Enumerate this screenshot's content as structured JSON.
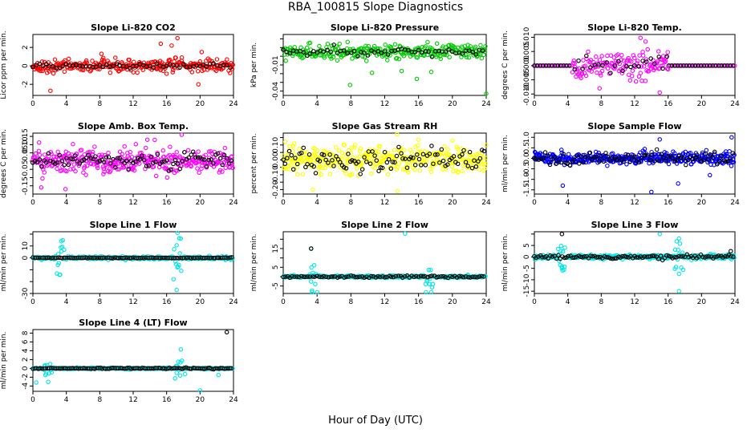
{
  "title": "RBA_100815  Slope Diagnostics",
  "xlabel": "Hour of Day (UTC)",
  "chart_data": [
    {
      "id": "co2",
      "type": "scatter",
      "title": "Slope Li-820 CO2",
      "ylabel": "Licor ppm per min.",
      "color": "#ff0000",
      "xlim": [
        0,
        24
      ],
      "ylim": [
        -3.2,
        3.4
      ],
      "yticks": [
        -2,
        0,
        2
      ],
      "yticklabels": [
        "-2",
        "0",
        "2"
      ],
      "xticks": [
        0,
        4,
        8,
        12,
        16,
        20,
        24
      ],
      "series": [
        {
          "color": "#ff0000",
          "spread": 0.6,
          "density": 300
        },
        {
          "color": "#000000",
          "spread": 0.25,
          "density": 60
        }
      ],
      "outliers": [
        [
          2.1,
          -2.7
        ],
        [
          15.3,
          2.4
        ],
        [
          16.6,
          2.2
        ],
        [
          17.3,
          3.0
        ],
        [
          19.8,
          -2.0
        ],
        [
          20.2,
          1.5
        ],
        [
          8.2,
          1.3
        ]
      ]
    },
    {
      "id": "pressure",
      "type": "scatter",
      "title": "Slope Li-820 Pressure",
      "ylabel": "kPa per min.",
      "color": "#00cc00",
      "xlim": [
        0,
        24
      ],
      "ylim": [
        -0.045,
        0.025
      ],
      "yticks": [
        -0.04,
        -0.03,
        -0.02,
        -0.01,
        0.0,
        0.01,
        0.02
      ],
      "yticklabels": [
        "-0.04",
        "",
        "",
        "-0.01",
        "",
        "",
        ""
      ],
      "xticks": [
        0,
        4,
        8,
        12,
        16,
        20,
        24
      ],
      "center": 0.005,
      "series": [
        {
          "color": "#00cc00",
          "spread": 0.007,
          "density": 300
        },
        {
          "color": "#000000",
          "spread": 0.004,
          "density": 60
        }
      ],
      "outliers": [
        [
          7.9,
          -0.033
        ],
        [
          15.8,
          -0.026
        ],
        [
          24.0,
          -0.043
        ],
        [
          10.5,
          -0.019
        ],
        [
          14.0,
          -0.017
        ],
        [
          17.5,
          -0.018
        ]
      ]
    },
    {
      "id": "temp",
      "type": "scatter",
      "title": "Slope Li-820 Temp.",
      "ylabel": "degrees C per min.",
      "color": "#ff00ff",
      "xlim": [
        0,
        24
      ],
      "ylim": [
        -0.0105,
        0.011
      ],
      "yticks": [
        -0.01,
        -0.005,
        0,
        0.005,
        0.01
      ],
      "yticklabels": [
        "-0.010",
        "-0.005",
        "0.000",
        "0.005",
        "0.010"
      ],
      "xticks": [
        0,
        4,
        8,
        12,
        16,
        20,
        24
      ],
      "center": 0,
      "series": [
        {
          "color": "#ff00ff",
          "spread": 0.004,
          "density": 280,
          "active": [
            4.5,
            16
          ]
        },
        {
          "color": "#000000",
          "spread": 0.003,
          "density": 50,
          "active": [
            4.5,
            16
          ]
        }
      ],
      "flat": {
        "color": "#ff00ff",
        "edge": "#000000"
      },
      "outliers": [
        [
          12.7,
          0.0098
        ],
        [
          13.3,
          0.0085
        ],
        [
          7.8,
          -0.008
        ],
        [
          15.0,
          -0.0095
        ]
      ]
    },
    {
      "id": "boxtemp",
      "type": "scatter",
      "title": "Slope Amb. Box Temp.",
      "ylabel": "degrees C per min.",
      "color": "#ff00ff",
      "xlim": [
        0,
        24
      ],
      "ylim": [
        -0.2,
        0.17
      ],
      "yticks": [
        -0.15,
        -0.1,
        -0.05,
        0,
        0.05,
        0.1,
        0.15
      ],
      "yticklabels": [
        "-0.15",
        "",
        "-0.05",
        "",
        "0.05",
        "0.10",
        "0.15"
      ],
      "xticks": [
        0,
        4,
        8,
        12,
        16,
        20,
        24
      ],
      "center": 0,
      "series": [
        {
          "color": "#ff00ff",
          "spread": 0.07,
          "density": 350
        },
        {
          "color": "#000000",
          "spread": 0.05,
          "density": 90
        }
      ],
      "outliers": [
        [
          3.9,
          -0.17
        ],
        [
          13.7,
          0.13
        ],
        [
          17.8,
          0.16
        ],
        [
          1.0,
          -0.16
        ]
      ]
    },
    {
      "id": "rh",
      "type": "scatter",
      "title": "Slope Gas Stream RH",
      "ylabel": "percent per min.",
      "color": "#ffff00",
      "xlim": [
        0,
        24
      ],
      "ylim": [
        -0.23,
        0.18
      ],
      "yticks": [
        -0.2,
        -0.15,
        -0.1,
        -0.05,
        0,
        0.05,
        0.1,
        0.15
      ],
      "yticklabels": [
        "-0.20",
        "",
        "-0.10",
        "",
        "0.00",
        "",
        "0.10",
        ""
      ],
      "xticks": [
        0,
        4,
        8,
        12,
        16,
        20,
        24
      ],
      "center": 0,
      "series": [
        {
          "color": "#ffff00",
          "spread": 0.08,
          "density": 380
        },
        {
          "color": "#000000",
          "spread": 0.07,
          "density": 100
        }
      ],
      "outliers": [
        [
          13.5,
          -0.21
        ],
        [
          3.5,
          -0.2
        ],
        [
          24.0,
          0.1
        ],
        [
          20.0,
          0.13
        ]
      ]
    },
    {
      "id": "sampleflow",
      "type": "scatter",
      "title": "Slope Sample Flow",
      "ylabel": "ml/min per min.",
      "color": "#0000ff",
      "xlim": [
        0,
        24
      ],
      "ylim": [
        -1.7,
        1.2
      ],
      "yticks": [
        -1.5,
        -1,
        -0.5,
        0,
        0.5,
        1
      ],
      "yticklabels": [
        "-1.5",
        "-1.0",
        "-0.5",
        "0.0",
        "0.5",
        "1.0"
      ],
      "xticks": [
        0,
        4,
        8,
        12,
        16,
        20,
        24
      ],
      "center": 0,
      "series": [
        {
          "color": "#0000ff",
          "spread": 0.25,
          "density": 380
        },
        {
          "color": "#000000",
          "spread": 0.3,
          "density": 90
        }
      ],
      "outliers": [
        [
          3.4,
          -1.3
        ],
        [
          14.0,
          -1.6
        ],
        [
          15.0,
          0.9
        ],
        [
          23.6,
          1.0
        ],
        [
          21.0,
          -0.8
        ],
        [
          17.2,
          -1.2
        ]
      ]
    },
    {
      "id": "line1",
      "type": "scatter",
      "title": "Slope Line 1 Flow",
      "ylabel": "ml/min per min.",
      "color": "#00e5e5",
      "xlim": [
        0,
        24
      ],
      "ylim": [
        -30,
        22
      ],
      "yticks": [
        -30,
        -20,
        -10,
        0,
        10,
        20
      ],
      "yticklabels": [
        "-30",
        "",
        "",
        "0",
        "10",
        ""
      ],
      "xticks": [
        0,
        4,
        8,
        12,
        16,
        20,
        24
      ],
      "center": 0,
      "series": [
        {
          "color": "#00e5e5",
          "spread": 1.2,
          "density": 300,
          "spikes": [
            3.3,
            17.3
          ],
          "spikeAmp": 9
        },
        {
          "color": "#000000",
          "spread": 0.3,
          "density": 110
        }
      ],
      "outliers": [
        [
          17.3,
          21
        ],
        [
          3.4,
          14
        ],
        [
          17.2,
          -27
        ],
        [
          17.3,
          -8
        ]
      ]
    },
    {
      "id": "line2",
      "type": "scatter",
      "title": "Slope Line 2 Flow",
      "ylabel": "ml/min per min.",
      "color": "#00e5e5",
      "xlim": [
        0,
        24
      ],
      "ylim": [
        -9,
        24
      ],
      "yticks": [
        -5,
        0,
        5,
        10,
        15,
        20
      ],
      "yticklabels": [
        "-5",
        "",
        "5",
        "",
        "15",
        ""
      ],
      "xticks": [
        0,
        4,
        8,
        12,
        16,
        20,
        24
      ],
      "center": 0,
      "series": [
        {
          "color": "#00e5e5",
          "spread": 0.6,
          "density": 300,
          "spikes": [
            3.6,
            17.3
          ],
          "spikeAmp": 5
        },
        {
          "color": "#000000",
          "spread": 0.6,
          "density": 90
        }
      ],
      "outliers": [
        [
          3.3,
          15
        ],
        [
          14.4,
          23
        ],
        [
          3.4,
          -7.5
        ],
        [
          17.3,
          -4
        ]
      ],
      "blackOutliers": [
        [
          3.3,
          15
        ]
      ]
    },
    {
      "id": "line3",
      "type": "scatter",
      "title": "Slope Line 3 Flow",
      "ylabel": "ml/min per min.",
      "color": "#00e5e5",
      "xlim": [
        0,
        24
      ],
      "ylim": [
        -16,
        11
      ],
      "yticks": [
        -15,
        -10,
        -5,
        0,
        5,
        10
      ],
      "yticklabels": [
        "-15",
        "-10",
        "-5",
        "0",
        "5",
        ""
      ],
      "xticks": [
        0,
        4,
        8,
        12,
        16,
        20,
        24
      ],
      "center": 0,
      "series": [
        {
          "color": "#00e5e5",
          "spread": 0.8,
          "density": 320,
          "spikes": [
            3.3,
            17.3
          ],
          "spikeAmp": 5
        },
        {
          "color": "#000000",
          "spread": 0.8,
          "density": 100
        }
      ],
      "outliers": [
        [
          15.0,
          10
        ],
        [
          17.3,
          8
        ],
        [
          17.3,
          -15
        ],
        [
          3.3,
          -5
        ]
      ],
      "blackOutliers": [
        [
          3.3,
          10
        ],
        [
          23.5,
          2.5
        ]
      ]
    },
    {
      "id": "line4",
      "type": "scatter",
      "title": "Slope Line 4 (LT) Flow",
      "ylabel": "ml/min per min.",
      "color": "#00e5e5",
      "xlim": [
        0,
        24
      ],
      "ylim": [
        -5.2,
        8.8
      ],
      "yticks": [
        -4,
        -2,
        0,
        2,
        4,
        6,
        8
      ],
      "yticklabels": [
        "-4",
        "-2",
        "0",
        "2",
        "4",
        "6",
        "8"
      ],
      "xticks": [
        0,
        4,
        8,
        12,
        16,
        20,
        24
      ],
      "center": 0,
      "series": [
        {
          "color": "#00e5e5",
          "spread": 0.15,
          "density": 300,
          "spikes": [
            1.8,
            17.5
          ],
          "spikeAmp": 1.2
        },
        {
          "color": "#000000",
          "spread": 0.12,
          "density": 110
        }
      ],
      "outliers": [
        [
          17.7,
          4.3
        ],
        [
          20.0,
          -5.0
        ],
        [
          0.4,
          -3.2
        ],
        [
          1.5,
          -1.5
        ],
        [
          18.2,
          -1.3
        ],
        [
          22.2,
          -1.5
        ]
      ],
      "blackOutliers": [
        [
          23.2,
          8.2
        ]
      ]
    }
  ]
}
